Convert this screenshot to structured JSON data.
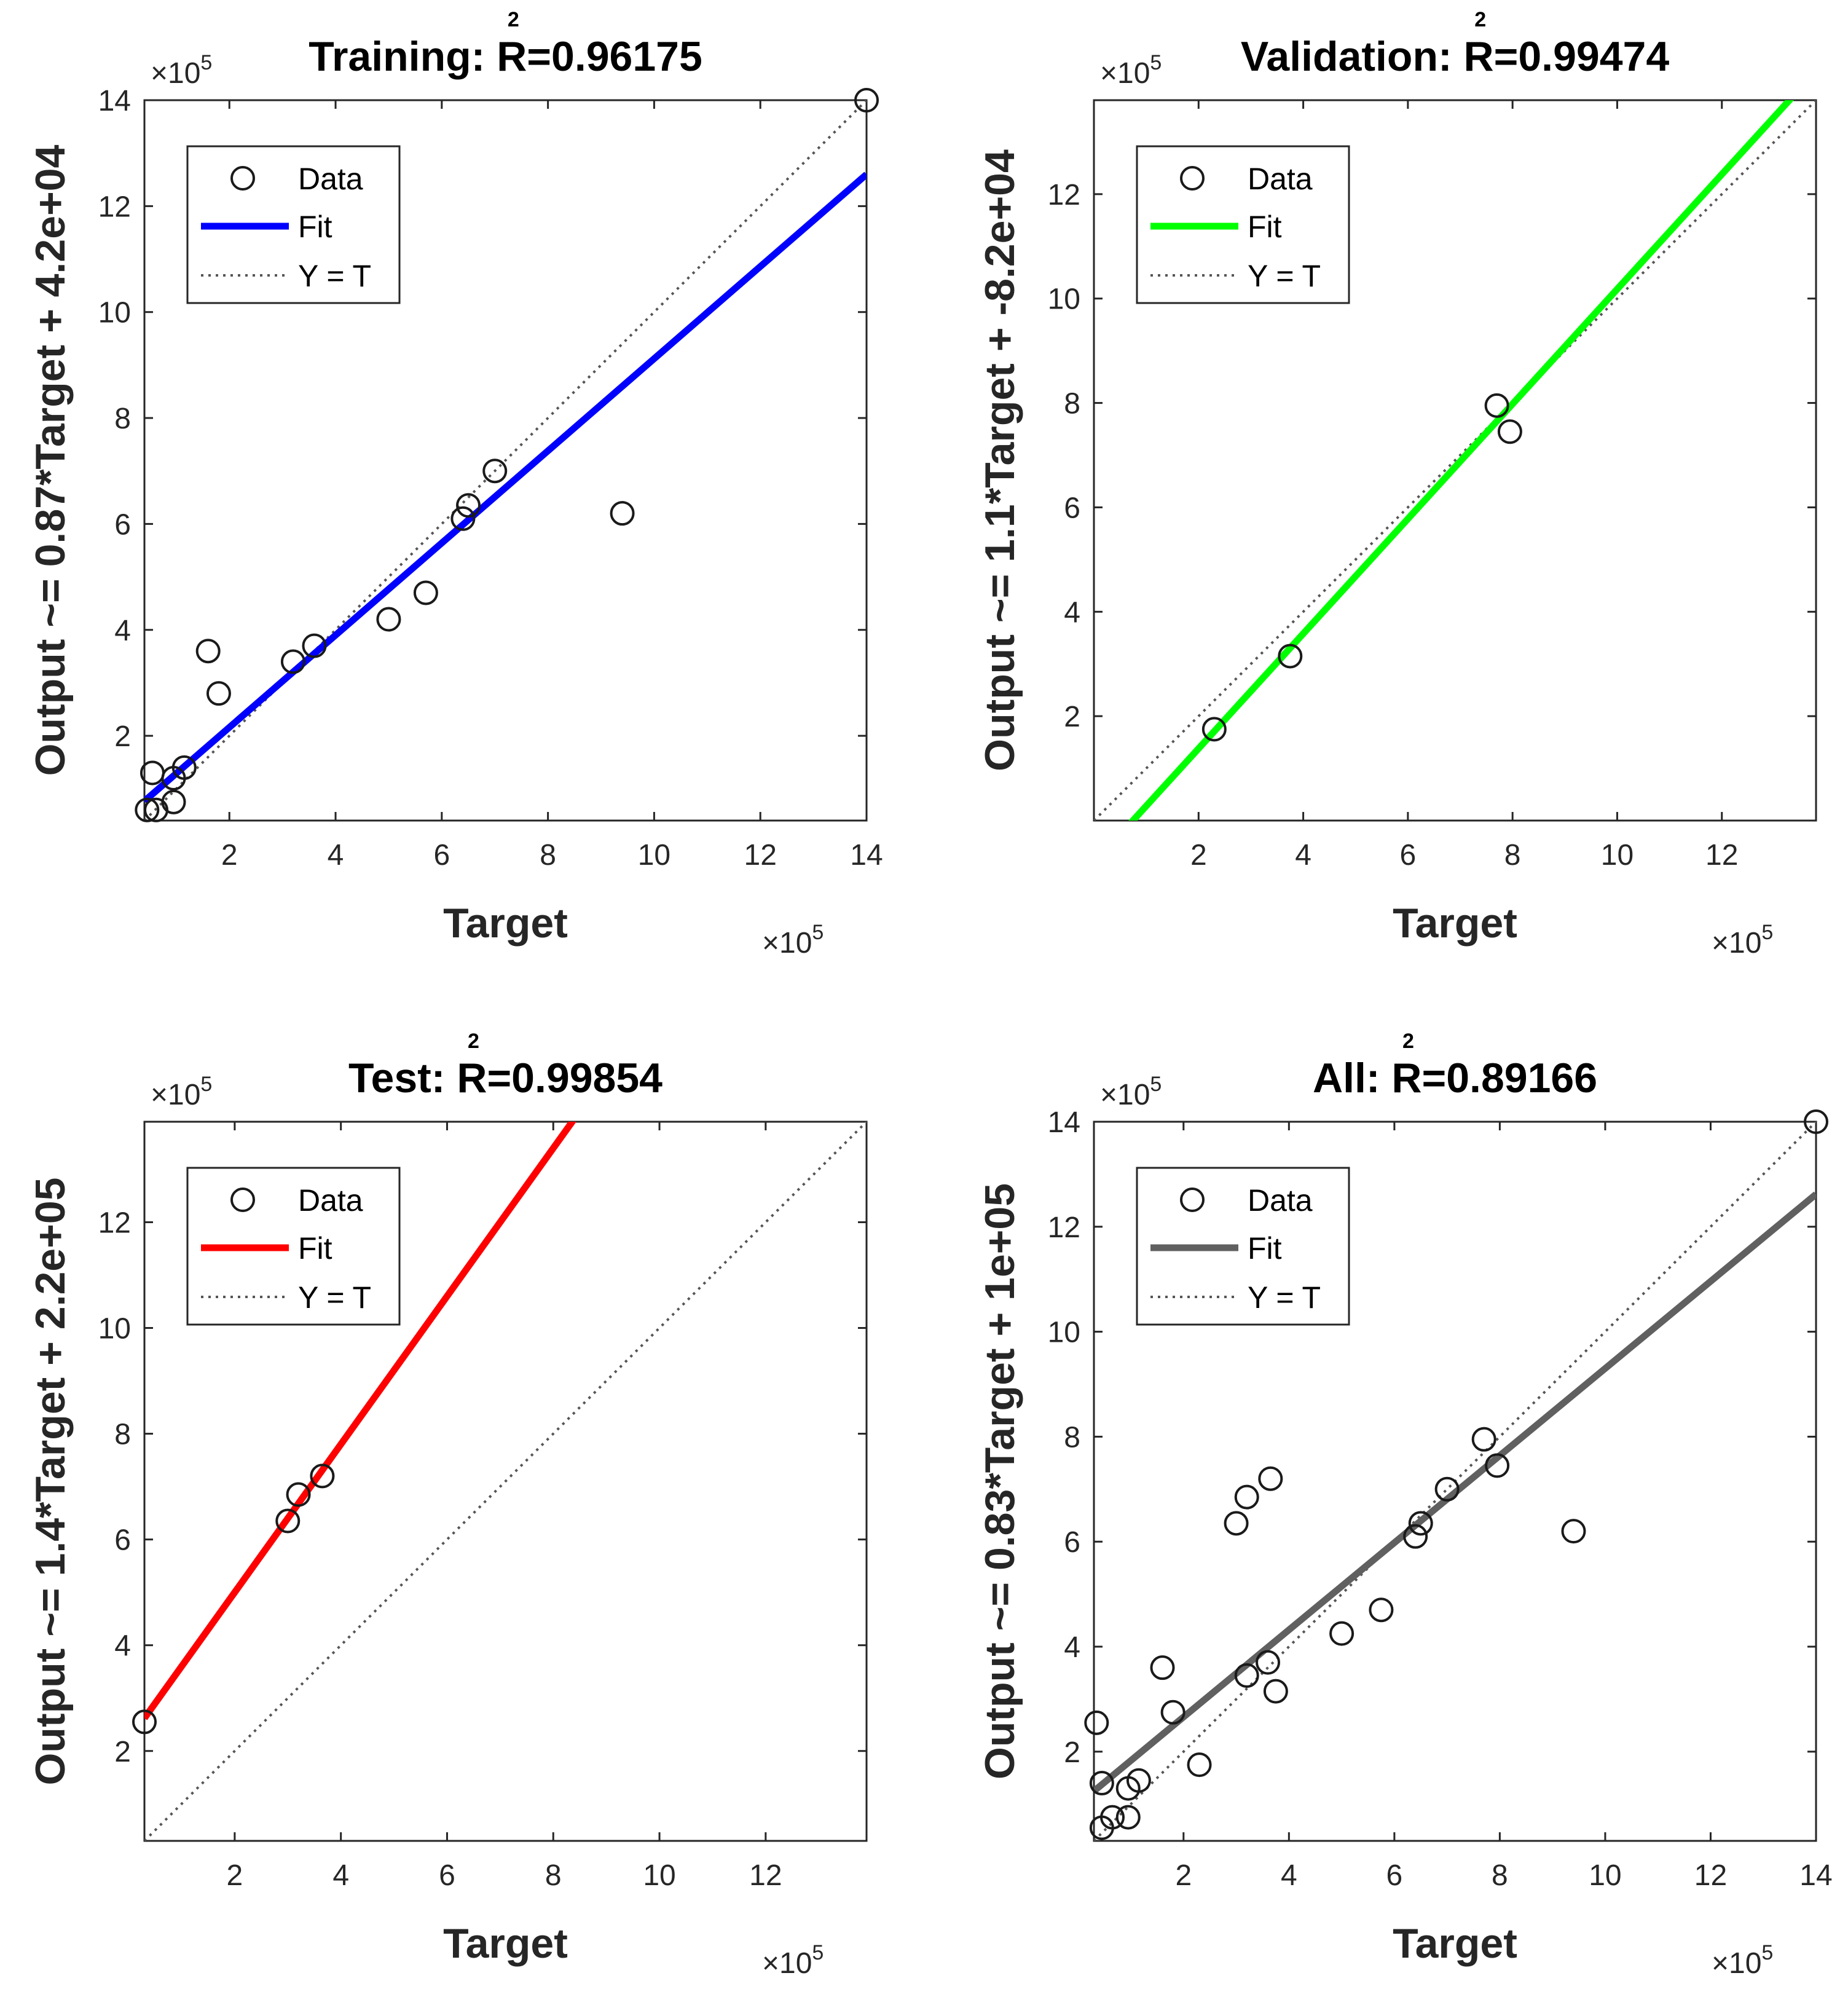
{
  "chart_data": [
    {
      "type": "scatter",
      "panel": "training",
      "title_prefix": "Training: R",
      "title_sup": "2",
      "title_value": "=0.96175",
      "xlabel": "Target",
      "ylabel": "Output ~= 0.87*Target + 4.2e+04",
      "exponent_base": "×10",
      "exponent_power": "5",
      "xlim": [
        0.4,
        14
      ],
      "ylim": [
        0.4,
        14
      ],
      "xticks": [
        "2",
        "4",
        "6",
        "8",
        "10",
        "12",
        "14"
      ],
      "yticks": [
        "2",
        "4",
        "6",
        "8",
        "10",
        "12",
        "14"
      ],
      "fit": {
        "slope": 0.87,
        "intercept": 0.42,
        "color": "#0000ff"
      },
      "legend": {
        "data": "Data",
        "fit": "Fit",
        "identity": "Y = T"
      },
      "points": [
        {
          "x": 0.45,
          "y": 0.6
        },
        {
          "x": 0.55,
          "y": 1.3
        },
        {
          "x": 0.62,
          "y": 0.6
        },
        {
          "x": 0.95,
          "y": 0.75
        },
        {
          "x": 0.95,
          "y": 1.2
        },
        {
          "x": 1.15,
          "y": 1.4
        },
        {
          "x": 1.6,
          "y": 3.6
        },
        {
          "x": 1.8,
          "y": 2.8
        },
        {
          "x": 3.2,
          "y": 3.4
        },
        {
          "x": 3.6,
          "y": 3.7
        },
        {
          "x": 5.0,
          "y": 4.2
        },
        {
          "x": 5.7,
          "y": 4.7
        },
        {
          "x": 6.4,
          "y": 6.1
        },
        {
          "x": 6.5,
          "y": 6.35
        },
        {
          "x": 7.0,
          "y": 7.0
        },
        {
          "x": 9.4,
          "y": 6.2
        },
        {
          "x": 14.0,
          "y": 14.0
        }
      ]
    },
    {
      "type": "scatter",
      "panel": "validation",
      "title_prefix": "Validation: R",
      "title_sup": "2",
      "title_value": "=0.99474",
      "xlabel": "Target",
      "ylabel": "Output ~= 1.1*Target + -8.2e+04",
      "exponent_base": "×10",
      "exponent_power": "5",
      "xlim": [
        0.0,
        13.8
      ],
      "ylim": [
        0.0,
        13.8
      ],
      "xticks": [
        "2",
        "4",
        "6",
        "8",
        "10",
        "12"
      ],
      "yticks": [
        "2",
        "4",
        "6",
        "8",
        "10",
        "12"
      ],
      "fit": {
        "slope": 1.1,
        "intercept": -0.82,
        "color": "#00ff00"
      },
      "legend": {
        "data": "Data",
        "fit": "Fit",
        "identity": "Y = T"
      },
      "points": [
        {
          "x": 2.3,
          "y": 1.75
        },
        {
          "x": 3.75,
          "y": 3.15
        },
        {
          "x": 7.7,
          "y": 7.95
        },
        {
          "x": 7.95,
          "y": 7.45
        }
      ]
    },
    {
      "type": "scatter",
      "panel": "test",
      "title_prefix": "Test: R",
      "title_sup": "2",
      "title_value": "=0.99854",
      "xlabel": "Target",
      "ylabel": "Output ~= 1.4*Target + 2.2e+05",
      "exponent_base": "×10",
      "exponent_power": "5",
      "xlim": [
        0.3,
        13.9
      ],
      "ylim": [
        0.3,
        13.9
      ],
      "xticks": [
        "2",
        "4",
        "6",
        "8",
        "10",
        "12"
      ],
      "yticks": [
        "2",
        "4",
        "6",
        "8",
        "10",
        "12"
      ],
      "fit": {
        "slope": 1.4,
        "intercept": 2.2,
        "color": "#ff0000"
      },
      "legend": {
        "data": "Data",
        "fit": "Fit",
        "identity": "Y = T"
      },
      "points": [
        {
          "x": 0.3,
          "y": 2.55
        },
        {
          "x": 3.0,
          "y": 6.35
        },
        {
          "x": 3.2,
          "y": 6.85
        },
        {
          "x": 3.65,
          "y": 7.2
        }
      ]
    },
    {
      "type": "scatter",
      "panel": "all",
      "title_prefix": "All: R",
      "title_sup": "2",
      "title_value": "=0.89166",
      "xlabel": "Target",
      "ylabel": "Output ~= 0.83*Target + 1e+05",
      "exponent_base": "×10",
      "exponent_power": "5",
      "xlim": [
        0.3,
        14
      ],
      "ylim": [
        0.3,
        14
      ],
      "xticks": [
        "2",
        "4",
        "6",
        "8",
        "10",
        "12",
        "14"
      ],
      "yticks": [
        "2",
        "4",
        "6",
        "8",
        "10",
        "12",
        "14"
      ],
      "fit": {
        "slope": 0.83,
        "intercept": 1.0,
        "color": "#606060"
      },
      "legend": {
        "data": "Data",
        "fit": "Fit",
        "identity": "Y = T"
      },
      "points": [
        {
          "x": 0.35,
          "y": 2.55
        },
        {
          "x": 0.45,
          "y": 1.4
        },
        {
          "x": 0.45,
          "y": 0.55
        },
        {
          "x": 0.65,
          "y": 0.75
        },
        {
          "x": 0.95,
          "y": 0.75
        },
        {
          "x": 0.95,
          "y": 1.3
        },
        {
          "x": 1.15,
          "y": 1.45
        },
        {
          "x": 1.6,
          "y": 3.6
        },
        {
          "x": 1.8,
          "y": 2.75
        },
        {
          "x": 2.3,
          "y": 1.75
        },
        {
          "x": 3.0,
          "y": 6.35
        },
        {
          "x": 3.2,
          "y": 6.85
        },
        {
          "x": 3.2,
          "y": 3.45
        },
        {
          "x": 3.6,
          "y": 3.7
        },
        {
          "x": 3.65,
          "y": 7.2
        },
        {
          "x": 3.75,
          "y": 3.15
        },
        {
          "x": 5.0,
          "y": 4.25
        },
        {
          "x": 5.75,
          "y": 4.7
        },
        {
          "x": 6.4,
          "y": 6.1
        },
        {
          "x": 6.5,
          "y": 6.35
        },
        {
          "x": 7.0,
          "y": 7.0
        },
        {
          "x": 7.7,
          "y": 7.95
        },
        {
          "x": 7.95,
          "y": 7.45
        },
        {
          "x": 9.4,
          "y": 6.2
        },
        {
          "x": 14.0,
          "y": 14.0
        }
      ]
    }
  ]
}
